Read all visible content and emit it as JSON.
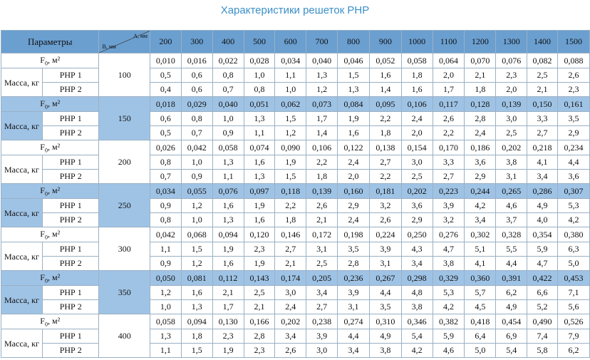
{
  "title": "Характеристики решеток РНР",
  "header": {
    "params_label": "Параметры",
    "a_label": "А, мм",
    "b_label": "В, мм",
    "a_values": [
      "200",
      "300",
      "400",
      "500",
      "600",
      "700",
      "800",
      "900",
      "1000",
      "1100",
      "1200",
      "1300",
      "1400",
      "1500"
    ]
  },
  "row_labels": {
    "f": "F0, м²",
    "mass": "Масса, кг",
    "rnr1": "РНР 1",
    "rnr2": "РНР 2"
  },
  "groups": [
    {
      "b": "100",
      "shaded": false,
      "f": [
        "0,010",
        "0,016",
        "0,022",
        "0,028",
        "0,034",
        "0,040",
        "0,046",
        "0,052",
        "0,058",
        "0,064",
        "0,070",
        "0,076",
        "0,082",
        "0,088"
      ],
      "r1": [
        "0,5",
        "0,6",
        "0,8",
        "1,0",
        "1,1",
        "1,3",
        "1,5",
        "1,6",
        "1,8",
        "2,0",
        "2,1",
        "2,3",
        "2,5",
        "2,6"
      ],
      "r2": [
        "0,4",
        "0,6",
        "0,7",
        "0,8",
        "1,0",
        "1,2",
        "1,3",
        "1,4",
        "1,6",
        "1,7",
        "1,8",
        "2,0",
        "2,1",
        "2,3"
      ]
    },
    {
      "b": "150",
      "shaded": true,
      "f": [
        "0,018",
        "0,029",
        "0,040",
        "0,051",
        "0,062",
        "0,073",
        "0,084",
        "0,095",
        "0,106",
        "0,117",
        "0,128",
        "0,139",
        "0,150",
        "0,161"
      ],
      "r1": [
        "0,6",
        "0,8",
        "1,0",
        "1,3",
        "1,5",
        "1,7",
        "1,9",
        "2,2",
        "2,4",
        "2,6",
        "2,8",
        "3,0",
        "3,3",
        "3,5"
      ],
      "r2": [
        "0,5",
        "0,7",
        "0,9",
        "1,1",
        "1,2",
        "1,4",
        "1,6",
        "1,8",
        "2,0",
        "2,2",
        "2,4",
        "2,5",
        "2,7",
        "2,9"
      ]
    },
    {
      "b": "200",
      "shaded": false,
      "f": [
        "0,026",
        "0,042",
        "0,058",
        "0,074",
        "0,090",
        "0,106",
        "0,122",
        "0,138",
        "0,154",
        "0,170",
        "0,186",
        "0,202",
        "0,218",
        "0,234"
      ],
      "r1": [
        "0,8",
        "1,0",
        "1,3",
        "1,6",
        "1,9",
        "2,2",
        "2,4",
        "2,7",
        "3,0",
        "3,3",
        "3,6",
        "3,8",
        "4,1",
        "4,4"
      ],
      "r2": [
        "0,7",
        "0,9",
        "1,1",
        "1,3",
        "1,5",
        "1,8",
        "2,0",
        "2,2",
        "2,5",
        "2,7",
        "2,9",
        "3,1",
        "3,4",
        "3,6"
      ]
    },
    {
      "b": "250",
      "shaded": true,
      "f": [
        "0,034",
        "0,055",
        "0,076",
        "0,097",
        "0,118",
        "0,139",
        "0,160",
        "0,181",
        "0,202",
        "0,223",
        "0,244",
        "0,265",
        "0,286",
        "0,307"
      ],
      "r1": [
        "0,9",
        "1,2",
        "1,6",
        "1,9",
        "2,2",
        "2,6",
        "2,9",
        "3,2",
        "3,6",
        "3,9",
        "4,2",
        "4,6",
        "4,9",
        "5,3"
      ],
      "r2": [
        "0,8",
        "1,0",
        "1,3",
        "1,6",
        "1,8",
        "2,1",
        "2,4",
        "2,6",
        "2,9",
        "3,2",
        "3,4",
        "3,7",
        "4,0",
        "4,2"
      ]
    },
    {
      "b": "300",
      "shaded": false,
      "f": [
        "0,042",
        "0,068",
        "0,094",
        "0,120",
        "0,146",
        "0,172",
        "0,198",
        "0,224",
        "0,250",
        "0,276",
        "0,302",
        "0,328",
        "0,354",
        "0,380"
      ],
      "r1": [
        "1,1",
        "1,5",
        "1,9",
        "2,3",
        "2,7",
        "3,1",
        "3,5",
        "3,9",
        "4,3",
        "4,7",
        "5,1",
        "5,5",
        "5,9",
        "6,3"
      ],
      "r2": [
        "0,9",
        "1,2",
        "1,6",
        "1,9",
        "2,1",
        "2,5",
        "2,8",
        "3,1",
        "3,4",
        "3,8",
        "4,1",
        "4,4",
        "4,7",
        "5,0"
      ]
    },
    {
      "b": "350",
      "shaded": true,
      "f": [
        "0,050",
        "0,081",
        "0,112",
        "0,143",
        "0,174",
        "0,205",
        "0,236",
        "0,267",
        "0,298",
        "0,329",
        "0,360",
        "0,391",
        "0,422",
        "0,453"
      ],
      "r1": [
        "1,2",
        "1,6",
        "2,1",
        "2,5",
        "3,0",
        "3,4",
        "3,9",
        "4,4",
        "4,8",
        "5,3",
        "5,7",
        "6,2",
        "6,6",
        "7,1"
      ],
      "r2": [
        "1,0",
        "1,3",
        "1,7",
        "2,1",
        "2,4",
        "2,7",
        "3,1",
        "3,5",
        "3,8",
        "4,2",
        "4,5",
        "4,9",
        "5,2",
        "5,6"
      ]
    },
    {
      "b": "400",
      "shaded": false,
      "f": [
        "0,058",
        "0,094",
        "0,130",
        "0,166",
        "0,202",
        "0,238",
        "0,274",
        "0,310",
        "0,346",
        "0,382",
        "0,418",
        "0,454",
        "0,490",
        "0,526"
      ],
      "r1": [
        "1,3",
        "1,8",
        "2,3",
        "2,8",
        "3,4",
        "3,9",
        "4,4",
        "4,9",
        "5,4",
        "5,9",
        "6,4",
        "6,9",
        "7,4",
        "7,9"
      ],
      "r2": [
        "1,1",
        "1,5",
        "1,9",
        "2,3",
        "2,6",
        "3,0",
        "3,4",
        "3,8",
        "4,2",
        "4,6",
        "5,0",
        "5,4",
        "5,8",
        "6,2"
      ]
    }
  ]
}
